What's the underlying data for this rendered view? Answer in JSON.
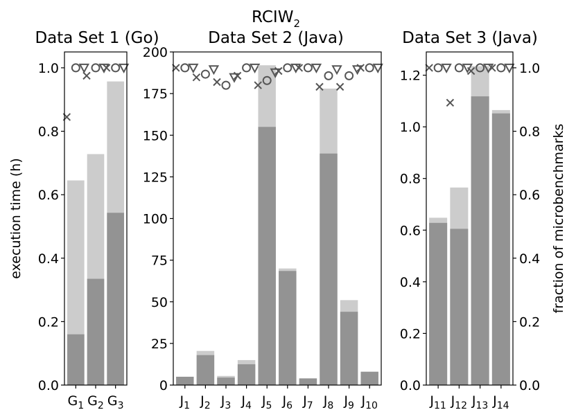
{
  "chart_data": {
    "type": "bar",
    "suptitle": "RCIW",
    "suptitle_sub": "2",
    "colors": {
      "total": "#cccccc",
      "part": "#939393",
      "marker": "#555555"
    },
    "panels": [
      {
        "title": "Data Set 1 (Go)",
        "ylabel": "execution time (h)",
        "ylim": [
          0,
          1.05
        ],
        "yticks": [
          "0.0",
          "0.2",
          "0.4",
          "0.6",
          "0.8",
          "1.0"
        ],
        "right_ylabel": "",
        "right_ylim": [
          0,
          1.05
        ],
        "right_yticks": [],
        "categories": [
          {
            "base": "G",
            "sub": "1"
          },
          {
            "base": "G",
            "sub": "2"
          },
          {
            "base": "G",
            "sub": "3"
          }
        ],
        "total": [
          0.645,
          0.728,
          0.957
        ],
        "part": [
          0.16,
          0.335,
          0.543
        ],
        "frac_x": [
          0.845,
          0.975,
          1.0
        ],
        "frac_o": [
          1.0,
          1.0,
          1.0
        ],
        "frac_v": [
          1.0,
          1.0,
          1.0
        ]
      },
      {
        "title": "Data Set 2 (Java)",
        "ylabel": "",
        "ylim": [
          0,
          200
        ],
        "yticks": [
          "0",
          "25",
          "50",
          "75",
          "100",
          "125",
          "150",
          "175",
          "200"
        ],
        "right_ylabel": "",
        "right_ylim": [
          0,
          1.05
        ],
        "right_yticks": [],
        "categories": [
          {
            "base": "J",
            "sub": "1"
          },
          {
            "base": "J",
            "sub": "2"
          },
          {
            "base": "J",
            "sub": "3"
          },
          {
            "base": "J",
            "sub": "4"
          },
          {
            "base": "J",
            "sub": "5"
          },
          {
            "base": "J",
            "sub": "6"
          },
          {
            "base": "J",
            "sub": "7"
          },
          {
            "base": "J",
            "sub": "8"
          },
          {
            "base": "J",
            "sub": "9"
          },
          {
            "base": "J",
            "sub": "10"
          }
        ],
        "total": [
          5,
          20.5,
          5.5,
          15,
          192,
          70,
          4,
          178,
          51,
          8
        ],
        "part": [
          5,
          18,
          4.5,
          12.5,
          155,
          68.5,
          4,
          139,
          44,
          8
        ],
        "frac_x": [
          1.0,
          0.97,
          0.955,
          0.975,
          0.945,
          0.99,
          1.0,
          0.94,
          0.94,
          1.0
        ],
        "frac_o": [
          1.0,
          0.98,
          0.945,
          1.0,
          0.96,
          1.0,
          1.0,
          0.975,
          0.975,
          1.0
        ],
        "frac_v": [
          1.0,
          0.995,
          0.97,
          1.0,
          0.985,
          1.0,
          1.0,
          0.995,
          0.995,
          1.0
        ]
      },
      {
        "title": "Data Set 3 (Java)",
        "ylabel": "",
        "ylim": [
          0,
          1.29
        ],
        "yticks": [
          "0.0",
          "0.2",
          "0.4",
          "0.6",
          "0.8",
          "1.0",
          "1.2"
        ],
        "right_ylabel": "fraction of microbenchmarks",
        "right_ylim": [
          0,
          1.05
        ],
        "right_yticks": [
          "0.0",
          "0.2",
          "0.4",
          "0.6",
          "0.8",
          "1.0"
        ],
        "categories": [
          {
            "base": "J",
            "sub": "11"
          },
          {
            "base": "J",
            "sub": "12"
          },
          {
            "base": "J",
            "sub": "13"
          },
          {
            "base": "J",
            "sub": "14"
          }
        ],
        "total": [
          0.648,
          0.765,
          1.235,
          1.065
        ],
        "part": [
          0.628,
          0.605,
          1.118,
          1.052
        ],
        "frac_x": [
          1.0,
          0.89,
          0.99,
          1.0
        ],
        "frac_o": [
          1.0,
          1.0,
          1.0,
          1.0
        ],
        "frac_v": [
          1.0,
          1.0,
          1.0,
          1.0
        ]
      }
    ]
  }
}
